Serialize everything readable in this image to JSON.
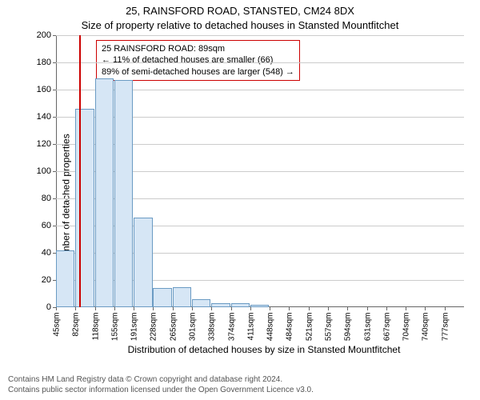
{
  "title_line1": "25, RAINSFORD ROAD, STANSTED, CM24 8DX",
  "title_line2": "Size of property relative to detached houses in Stansted Mountfitchet",
  "y_axis_label": "Number of detached properties",
  "x_axis_label": "Distribution of detached houses by size in Stansted Mountfitchet",
  "attribution_line1": "Contains HM Land Registry data © Crown copyright and database right 2024.",
  "attribution_line2": "Contains public sector information licensed under the Open Government Licence v3.0.",
  "chart": {
    "type": "histogram",
    "ylim": [
      0,
      200
    ],
    "ytick_step": 20,
    "grid_color": "#cccccc",
    "axis_color": "#666666",
    "bar_fill": "#d6e6f5",
    "bar_stroke": "#6b9bc3",
    "marker_color": "#cc0000",
    "infobox_border": "#cc0000",
    "background_color": "#ffffff",
    "bar_width_pct": 4.6,
    "x_start_sqm": 45,
    "x_step_sqm": 36.6,
    "bars": [
      {
        "label": "45sqm",
        "value": 42
      },
      {
        "label": "82sqm",
        "value": 146
      },
      {
        "label": "118sqm",
        "value": 168
      },
      {
        "label": "155sqm",
        "value": 167
      },
      {
        "label": "191sqm",
        "value": 66
      },
      {
        "label": "228sqm",
        "value": 14
      },
      {
        "label": "265sqm",
        "value": 15
      },
      {
        "label": "301sqm",
        "value": 6
      },
      {
        "label": "338sqm",
        "value": 3
      },
      {
        "label": "374sqm",
        "value": 3
      },
      {
        "label": "411sqm",
        "value": 2
      },
      {
        "label": "448sqm",
        "value": 0
      },
      {
        "label": "484sqm",
        "value": 0
      },
      {
        "label": "521sqm",
        "value": 0
      },
      {
        "label": "557sqm",
        "value": 0
      },
      {
        "label": "594sqm",
        "value": 0
      },
      {
        "label": "631sqm",
        "value": 0
      },
      {
        "label": "667sqm",
        "value": 0
      },
      {
        "label": "704sqm",
        "value": 0
      },
      {
        "label": "740sqm",
        "value": 0
      },
      {
        "label": "777sqm",
        "value": 0
      }
    ],
    "marker_sqm": 89,
    "info_box": {
      "line1": "25 RAINSFORD ROAD: 89sqm",
      "line2": "← 11% of detached houses are smaller (66)",
      "line3": "89% of semi-detached houses are larger (548) →"
    }
  }
}
